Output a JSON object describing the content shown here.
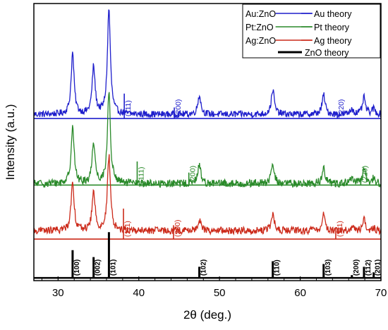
{
  "chart_data": {
    "type": "line",
    "xlabel": "2θ (deg.)",
    "ylabel": "Intensity (a.u.)",
    "xlim": [
      27,
      70
    ],
    "xticks": [
      30,
      40,
      50,
      60,
      70
    ],
    "grid": false,
    "legend_position": "top-right",
    "legend": [
      {
        "label": "Au:ZnO",
        "color": "#1f1fcc"
      },
      {
        "label": "Au theory",
        "color": "#1f1fcc"
      },
      {
        "label": "Pt:ZnO",
        "color": "#2a8a2a"
      },
      {
        "label": "Pt theory",
        "color": "#2a8a2a"
      },
      {
        "label": "Ag:ZnO",
        "color": "#cc2a1a"
      },
      {
        "label": "Ag theory",
        "color": "#cc2a1a"
      },
      {
        "label": "ZnO theory",
        "color": "#000000"
      }
    ],
    "series": [
      {
        "name": "Au:ZnO",
        "color": "#1f1fcc",
        "baseline": 0.6,
        "noise": 0.012,
        "peaks": [
          {
            "x": 31.8,
            "h": 0.22
          },
          {
            "x": 34.4,
            "h": 0.17
          },
          {
            "x": 36.3,
            "h": 0.38
          },
          {
            "x": 47.5,
            "h": 0.07
          },
          {
            "x": 56.6,
            "h": 0.09
          },
          {
            "x": 62.9,
            "h": 0.07
          },
          {
            "x": 66.4,
            "h": 0.02
          },
          {
            "x": 67.9,
            "h": 0.06
          },
          {
            "x": 69.1,
            "h": 0.02
          }
        ]
      },
      {
        "name": "Pt:ZnO",
        "color": "#2a8a2a",
        "baseline": 0.35,
        "noise": 0.014,
        "peaks": [
          {
            "x": 31.8,
            "h": 0.21
          },
          {
            "x": 34.4,
            "h": 0.15
          },
          {
            "x": 36.3,
            "h": 0.33
          },
          {
            "x": 47.5,
            "h": 0.07
          },
          {
            "x": 56.6,
            "h": 0.07
          },
          {
            "x": 62.9,
            "h": 0.06
          },
          {
            "x": 66.4,
            "h": 0.02
          },
          {
            "x": 67.9,
            "h": 0.05
          },
          {
            "x": 69.1,
            "h": 0.02
          }
        ]
      },
      {
        "name": "Ag:ZnO",
        "color": "#cc2a1a",
        "baseline": 0.18,
        "noise": 0.013,
        "peaks": [
          {
            "x": 31.8,
            "h": 0.18
          },
          {
            "x": 34.4,
            "h": 0.14
          },
          {
            "x": 36.3,
            "h": 0.27
          },
          {
            "x": 47.5,
            "h": 0.04
          },
          {
            "x": 56.6,
            "h": 0.06
          },
          {
            "x": 62.9,
            "h": 0.06
          },
          {
            "x": 66.4,
            "h": 0.01
          },
          {
            "x": 67.9,
            "h": 0.04
          },
          {
            "x": 69.1,
            "h": 0.01
          }
        ]
      }
    ],
    "reference_patterns": [
      {
        "name": "Au theory",
        "color": "#1f1fcc",
        "baseline": 0.585,
        "lines": [
          {
            "x": 38.2,
            "h": 0.09,
            "label": "(111)"
          },
          {
            "x": 44.4,
            "h": 0.04,
            "label": "(200)"
          },
          {
            "x": 64.6,
            "h": 0.02,
            "label": "(220)"
          }
        ]
      },
      {
        "name": "Pt theory",
        "color": "#2a8a2a",
        "baseline": 0.345,
        "lines": [
          {
            "x": 39.8,
            "h": 0.085,
            "label": "(111)"
          },
          {
            "x": 46.2,
            "h": 0.045,
            "label": "(200)"
          },
          {
            "x": 67.5,
            "h": 0.025,
            "label": "(220)"
          }
        ]
      },
      {
        "name": "Ag theory",
        "color": "#cc2a1a",
        "baseline": 0.15,
        "lines": [
          {
            "x": 38.1,
            "h": 0.11,
            "label": "(111)"
          },
          {
            "x": 44.3,
            "h": 0.05,
            "label": "(200)"
          },
          {
            "x": 64.4,
            "h": 0.03,
            "label": "(111)"
          }
        ]
      },
      {
        "name": "ZnO theory",
        "color": "#000000",
        "baseline": 0.01,
        "lines": [
          {
            "x": 31.8,
            "h": 0.1,
            "label": "(100)"
          },
          {
            "x": 34.4,
            "h": 0.075,
            "label": "(002)"
          },
          {
            "x": 36.3,
            "h": 0.165,
            "label": "(101)"
          },
          {
            "x": 47.5,
            "h": 0.04,
            "label": "(102)"
          },
          {
            "x": 56.6,
            "h": 0.06,
            "label": "(110)"
          },
          {
            "x": 62.9,
            "h": 0.05,
            "label": "(103)"
          },
          {
            "x": 66.4,
            "h": 0.01,
            "label": "(200)"
          },
          {
            "x": 67.9,
            "h": 0.04,
            "label": "(112)"
          },
          {
            "x": 69.1,
            "h": 0.02,
            "label": "(201)"
          }
        ]
      }
    ]
  }
}
